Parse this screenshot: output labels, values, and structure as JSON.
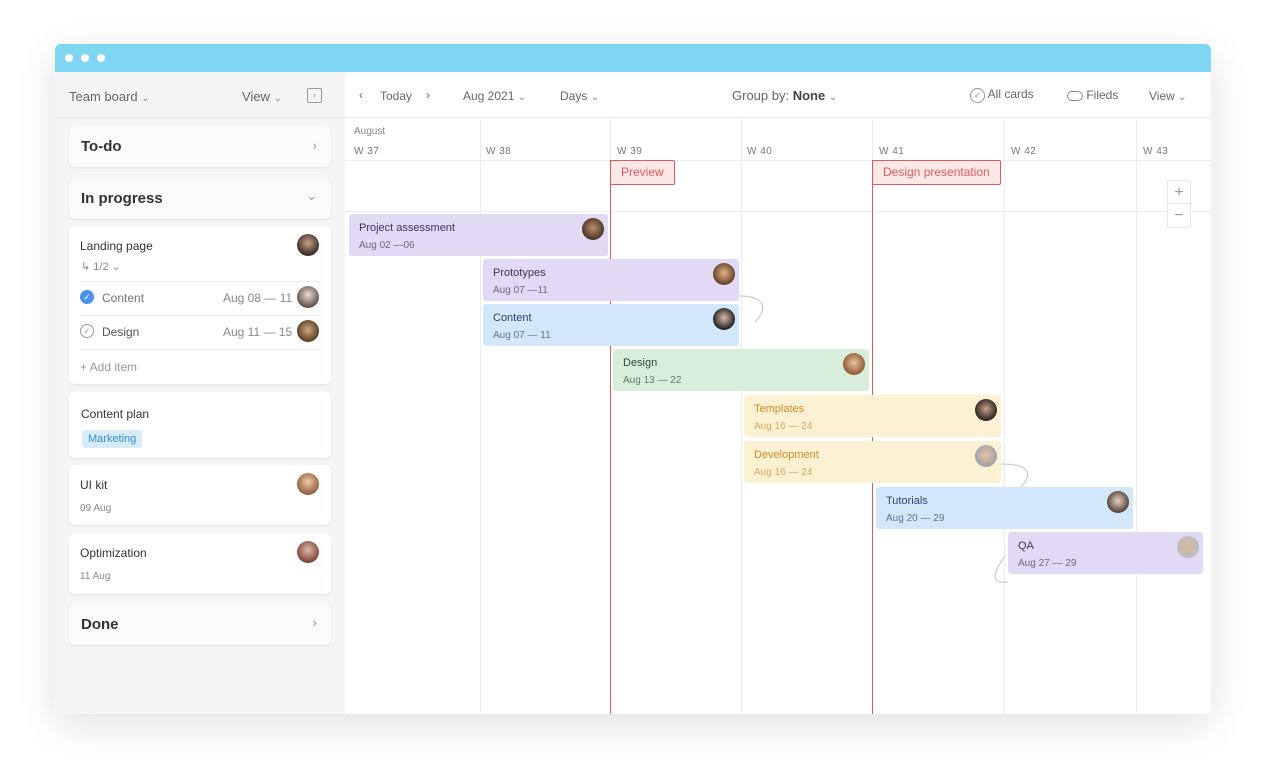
{
  "sidebar": {
    "board": "Team board",
    "view": "View",
    "sections": {
      "todo": "To-do",
      "inprogress": "In progress",
      "done": "Done"
    },
    "landing": {
      "title": "Landing page",
      "subtasks": "1/2",
      "items": [
        {
          "label": "Content",
          "dates": "Aug 08 — 11",
          "done": true
        },
        {
          "label": "Design",
          "dates": "Aug 11 — 15",
          "done": false
        }
      ],
      "add": "+ Add item"
    },
    "content_plan": {
      "title": "Content plan",
      "tag": "Marketing"
    },
    "uikit": {
      "title": "UI kit",
      "date": "09 Aug"
    },
    "optimization": {
      "title": "Optimization",
      "date": "11 Aug"
    }
  },
  "toolbar": {
    "today": "Today",
    "month": "Aug 2021",
    "scale": "Days",
    "group_label": "Group by:",
    "group_value": "None",
    "all_cards": "All cards",
    "fields": "Fileds",
    "view": "View"
  },
  "timeline": {
    "month": "August",
    "weeks": [
      "W 37",
      "W 38",
      "W 39",
      "W 40",
      "W 41",
      "W 42",
      "W 43"
    ],
    "milestones": [
      "Preview",
      "Design presentation"
    ],
    "tasks": [
      {
        "name": "Project assessment",
        "dates": "Aug 02 —06",
        "color": "#e2d9f5"
      },
      {
        "name": "Prototypes",
        "dates": "Aug 07 —11",
        "color": "#e2d9f5"
      },
      {
        "name": "Content",
        "dates": "Aug 07 — 11",
        "color": "#d3e7fb"
      },
      {
        "name": "Design",
        "dates": "Aug 13 — 22",
        "color": "#d8eedb"
      },
      {
        "name": "Templates",
        "dates": "Aug 16 — 24",
        "color": "#fdf1d3"
      },
      {
        "name": "Development",
        "dates": "Aug 16 — 24",
        "color": "#fdf1d3"
      },
      {
        "name": "Tutorials",
        "dates": "Aug 20 — 29",
        "color": "#d3e7fb"
      },
      {
        "name": "QA",
        "dates": "Aug 27 — 29",
        "color": "#e2d9f5"
      }
    ]
  },
  "colors": {
    "titlebar": "#7fd6f2",
    "milestone": "#e05a5a",
    "check": "#4a90f0"
  }
}
